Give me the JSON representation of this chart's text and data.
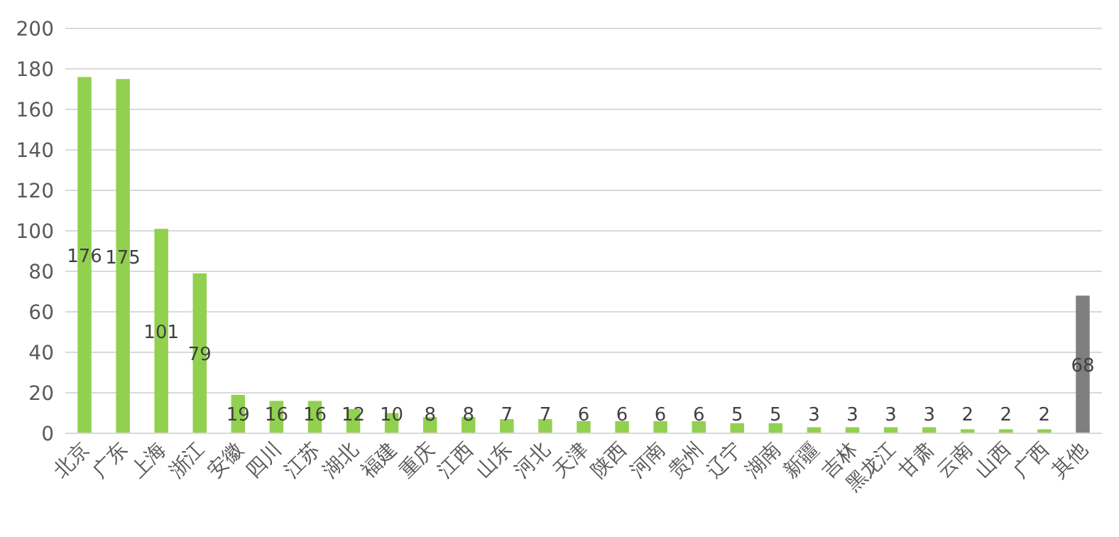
{
  "chart_data": {
    "type": "bar",
    "categories": [
      "北京",
      "广东",
      "上海",
      "浙江",
      "安徽",
      "四川",
      "江苏",
      "湖北",
      "福建",
      "重庆",
      "江西",
      "山东",
      "河北",
      "天津",
      "陕西",
      "河南",
      "贵州",
      "辽宁",
      "湖南",
      "新疆",
      "吉林",
      "黑龙江",
      "甘肃",
      "云南",
      "山西",
      "广西",
      "其他"
    ],
    "values": [
      176,
      175,
      101,
      79,
      19,
      16,
      16,
      12,
      10,
      8,
      8,
      7,
      7,
      6,
      6,
      6,
      6,
      5,
      5,
      3,
      3,
      3,
      3,
      2,
      2,
      2,
      68
    ],
    "colors": [
      "#92d050",
      "#92d050",
      "#92d050",
      "#92d050",
      "#92d050",
      "#92d050",
      "#92d050",
      "#92d050",
      "#92d050",
      "#92d050",
      "#92d050",
      "#92d050",
      "#92d050",
      "#92d050",
      "#92d050",
      "#92d050",
      "#92d050",
      "#92d050",
      "#92d050",
      "#92d050",
      "#92d050",
      "#92d050",
      "#92d050",
      "#92d050",
      "#92d050",
      "#92d050",
      "#7f7f7f"
    ],
    "ylim": [
      0,
      200
    ],
    "yticks": [
      0,
      20,
      40,
      60,
      80,
      100,
      120,
      140,
      160,
      180,
      200
    ],
    "grid": "y",
    "data_labels": true
  }
}
